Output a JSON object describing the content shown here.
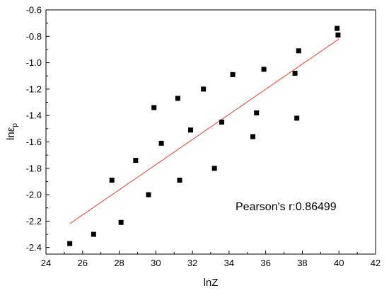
{
  "chart_data": {
    "type": "scatter",
    "xlabel": "lnZ",
    "ylabel_main": "lnε",
    "ylabel_sub": "p",
    "xlim": [
      24,
      42
    ],
    "ylim": [
      -2.45,
      -0.6
    ],
    "x_ticks": [
      24,
      26,
      28,
      30,
      32,
      34,
      36,
      38,
      40,
      42
    ],
    "y_ticks": [
      -2.4,
      -2.2,
      -2.0,
      -1.8,
      -1.6,
      -1.4,
      -1.2,
      -1.0,
      -0.8,
      -0.6
    ],
    "grid": false,
    "annotation": "Pearson's r:0.86499",
    "fit_line": {
      "x": [
        25.3,
        40.0
      ],
      "y": [
        -2.22,
        -0.82
      ],
      "color": "#e8423b"
    },
    "marker_color": "#000000",
    "points": [
      {
        "x": 25.3,
        "y": -2.37
      },
      {
        "x": 26.6,
        "y": -2.3
      },
      {
        "x": 27.6,
        "y": -1.89
      },
      {
        "x": 28.1,
        "y": -2.21
      },
      {
        "x": 28.9,
        "y": -1.74
      },
      {
        "x": 29.6,
        "y": -2.0
      },
      {
        "x": 29.9,
        "y": -1.34
      },
      {
        "x": 30.3,
        "y": -1.61
      },
      {
        "x": 31.2,
        "y": -1.27
      },
      {
        "x": 31.3,
        "y": -1.89
      },
      {
        "x": 31.9,
        "y": -1.51
      },
      {
        "x": 32.6,
        "y": -1.2
      },
      {
        "x": 33.2,
        "y": -1.8
      },
      {
        "x": 33.6,
        "y": -1.45
      },
      {
        "x": 34.2,
        "y": -1.09
      },
      {
        "x": 35.3,
        "y": -1.56
      },
      {
        "x": 35.5,
        "y": -1.38
      },
      {
        "x": 35.9,
        "y": -1.05
      },
      {
        "x": 37.6,
        "y": -1.08
      },
      {
        "x": 37.7,
        "y": -1.42
      },
      {
        "x": 37.8,
        "y": -0.91
      },
      {
        "x": 39.9,
        "y": -0.74
      },
      {
        "x": 39.95,
        "y": -0.79
      }
    ]
  }
}
